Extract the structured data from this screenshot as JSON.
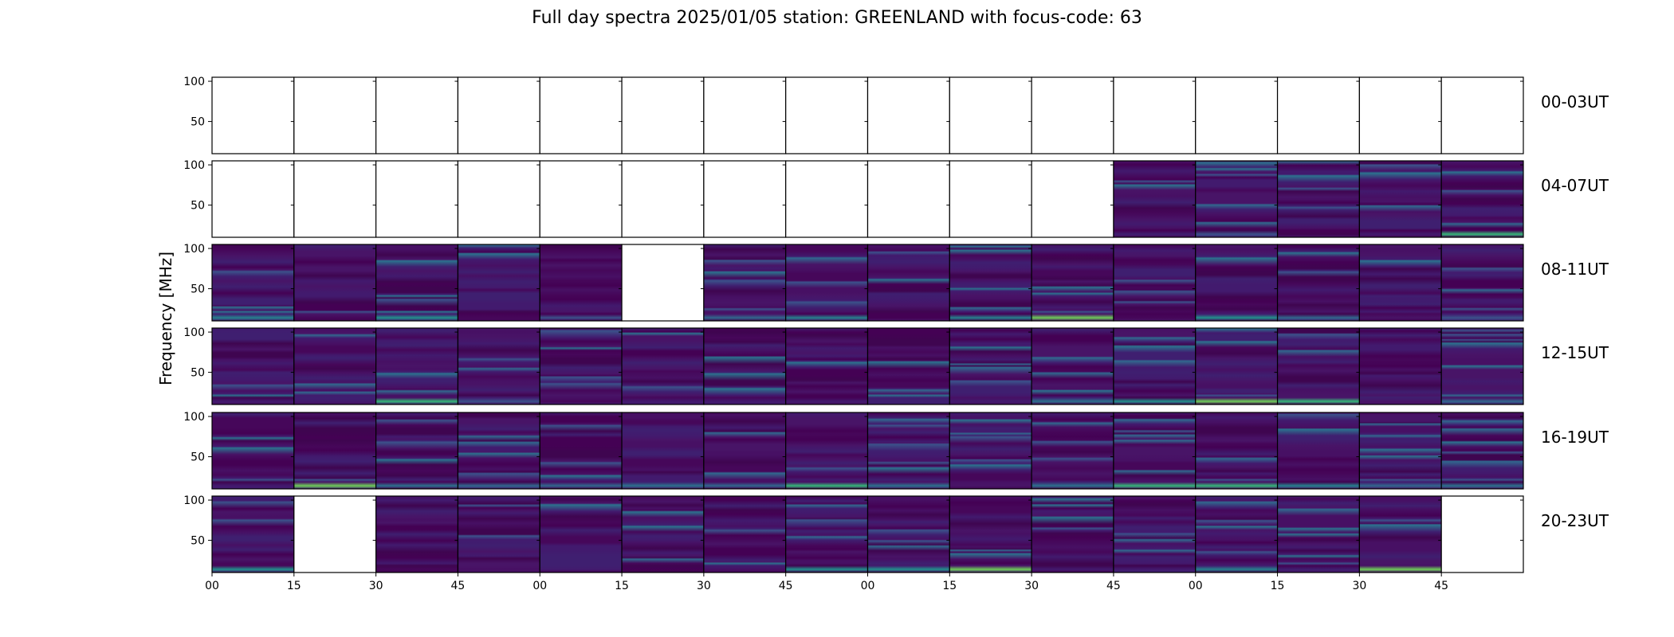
{
  "chart_data": {
    "type": "heatmap",
    "title": "Full day spectra 2025/01/05 station: GREENLAND with focus-code: 63",
    "ylabel": "Frequency [MHz]",
    "xlabel": "",
    "ylim": [
      10,
      105
    ],
    "yticks": [
      50,
      100
    ],
    "xtick_labels": [
      "00",
      "15",
      "30",
      "45",
      "00",
      "15",
      "30",
      "45",
      "00",
      "15",
      "30",
      "45",
      "00",
      "15",
      "30",
      "45"
    ],
    "colormap": "viridis",
    "colors": {
      "empty": "#ffffff",
      "low": "#440154",
      "mid": "#21918c",
      "high": "#fde725"
    },
    "panels_per_row": 16,
    "panel_minutes": 15,
    "rows": [
      {
        "label": "00-03UT",
        "filled": [
          0,
          0,
          0,
          0,
          0,
          0,
          0,
          0,
          0,
          0,
          0,
          0,
          0,
          0,
          0,
          0
        ]
      },
      {
        "label": "04-07UT",
        "filled": [
          0,
          0,
          0,
          0,
          0,
          0,
          0,
          0,
          0,
          0,
          0,
          1,
          1,
          1,
          1,
          1
        ]
      },
      {
        "label": "08-11UT",
        "filled": [
          1,
          1,
          1,
          1,
          1,
          0,
          1,
          1,
          1,
          1,
          1,
          1,
          1,
          1,
          1,
          1
        ]
      },
      {
        "label": "12-15UT",
        "filled": [
          1,
          1,
          1,
          1,
          1,
          1,
          1,
          1,
          1,
          1,
          1,
          1,
          1,
          1,
          1,
          1
        ]
      },
      {
        "label": "16-19UT",
        "filled": [
          1,
          1,
          1,
          1,
          1,
          1,
          1,
          1,
          1,
          1,
          1,
          1,
          1,
          1,
          1,
          1
        ]
      },
      {
        "label": "20-23UT",
        "filled": [
          1,
          0,
          1,
          1,
          1,
          1,
          1,
          1,
          1,
          1,
          1,
          1,
          1,
          1,
          1,
          0
        ]
      }
    ]
  }
}
